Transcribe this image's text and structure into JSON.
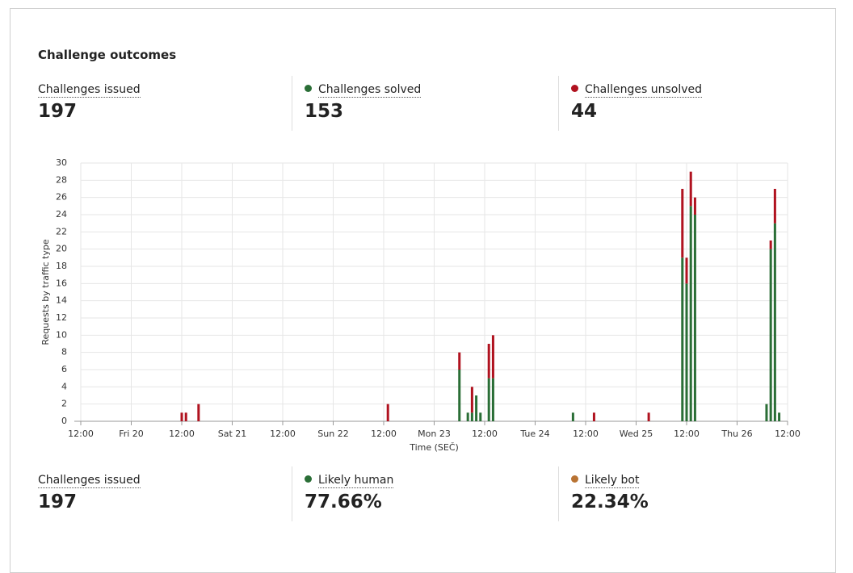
{
  "header": {
    "title": "Challenge outcomes"
  },
  "stats_top": [
    {
      "label": "Challenges issued",
      "value": 197
    },
    {
      "label": "Challenges solved",
      "value": 153,
      "color": "#2a6e36"
    },
    {
      "label": "Challenges unsolved",
      "value": 44,
      "color": "#b0121f"
    }
  ],
  "chart_data": {
    "type": "bar",
    "stacked": true,
    "grid": true,
    "xlabel": "Time (SEČ)",
    "ylabel": "Requests by traffic type",
    "x": [
      24,
      25,
      28,
      73,
      90,
      92,
      93,
      94,
      95,
      97,
      98,
      117,
      122,
      135,
      143,
      144,
      145,
      146,
      163,
      164,
      165,
      166
    ],
    "series": [
      {
        "name": "Challenges solved",
        "color": "#2a6e36",
        "values": [
          0,
          0,
          0,
          0,
          6,
          1,
          1,
          3,
          1,
          5,
          5,
          1,
          0,
          0,
          19,
          16,
          25,
          24,
          2,
          20,
          23,
          1
        ]
      },
      {
        "name": "Challenges unsolved",
        "color": "#b0121f",
        "values": [
          1,
          1,
          2,
          2,
          2,
          0,
          3,
          0,
          0,
          4,
          5,
          0,
          1,
          1,
          8,
          3,
          4,
          2,
          0,
          1,
          4,
          0
        ]
      }
    ],
    "xlim": [
      0,
      168
    ],
    "xticks": [
      {
        "value": 0,
        "label": "12:00"
      },
      {
        "value": 12,
        "label": "Fri 20"
      },
      {
        "value": 24,
        "label": "12:00"
      },
      {
        "value": 36,
        "label": "Sat 21"
      },
      {
        "value": 48,
        "label": "12:00"
      },
      {
        "value": 60,
        "label": "Sun 22"
      },
      {
        "value": 72,
        "label": "12:00"
      },
      {
        "value": 84,
        "label": "Mon 23"
      },
      {
        "value": 96,
        "label": "12:00"
      },
      {
        "value": 108,
        "label": "Tue 24"
      },
      {
        "value": 120,
        "label": "12:00"
      },
      {
        "value": 132,
        "label": "Wed 25"
      },
      {
        "value": 144,
        "label": "12:00"
      },
      {
        "value": 156,
        "label": "Thu 26"
      },
      {
        "value": 168,
        "label": "12:00"
      }
    ],
    "ylim": [
      0,
      30
    ],
    "yticks": [
      0,
      2,
      4,
      6,
      8,
      10,
      12,
      14,
      16,
      18,
      20,
      22,
      24,
      26,
      28,
      30
    ]
  },
  "stats_bottom": [
    {
      "label": "Challenges issued",
      "value": 197
    },
    {
      "label": "Likely human",
      "value": "77.66%",
      "color": "#2a6e36"
    },
    {
      "label": "Likely bot",
      "value": "22.34%",
      "color": "#b87333"
    }
  ]
}
